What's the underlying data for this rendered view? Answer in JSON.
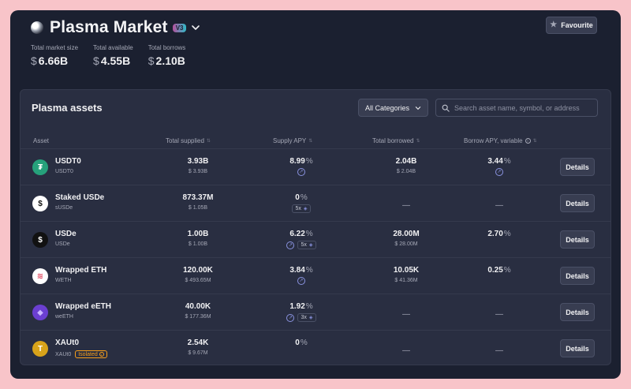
{
  "market": {
    "title": "Plasma Market",
    "version": "V3",
    "favourite_label": "Favourite"
  },
  "stats": [
    {
      "label": "Total market size",
      "currency": "$",
      "value": "6.66B"
    },
    {
      "label": "Total available",
      "currency": "$",
      "value": "4.55B"
    },
    {
      "label": "Total borrows",
      "currency": "$",
      "value": "2.10B"
    }
  ],
  "assets_panel": {
    "title": "Plasma assets",
    "category_selected": "All Categories",
    "search_placeholder": "Search asset name, symbol, or address",
    "columns": [
      "Asset",
      "Total supplied",
      "Supply APY",
      "Total borrowed",
      "Borrow APY, variable"
    ]
  },
  "rows": [
    {
      "name": "USDT0",
      "symbol": "USDT0",
      "icon": "usdt0-icon",
      "icon_bg": "#26a17b",
      "icon_fg": "#ffffff",
      "icon_glyph": "₮",
      "supplied": "3.93B",
      "supplied_usd": "$ 3.93B",
      "supply_apy": "8.99",
      "supply_incentive": true,
      "supply_mult": "",
      "borrowed": "2.04B",
      "borrowed_usd": "$ 2.04B",
      "borrow_apy": "3.44",
      "borrow_incentive": true,
      "details": "Details"
    },
    {
      "name": "Staked USDe",
      "symbol": "sUSDe",
      "icon": "susde-icon",
      "icon_bg": "#ffffff",
      "icon_fg": "#111111",
      "icon_glyph": "$",
      "supplied": "873.37M",
      "supplied_usd": "$ 1.05B",
      "supply_apy": "0",
      "supply_incentive": false,
      "supply_mult": "5x",
      "borrowed": "—",
      "borrowed_usd": "",
      "borrow_apy": "—",
      "borrow_incentive": false,
      "details": "Details"
    },
    {
      "name": "USDe",
      "symbol": "USDe",
      "icon": "usde-icon",
      "icon_bg": "#111111",
      "icon_fg": "#ffffff",
      "icon_glyph": "$",
      "supplied": "1.00B",
      "supplied_usd": "$ 1.00B",
      "supply_apy": "6.22",
      "supply_incentive": true,
      "supply_mult": "5x",
      "borrowed": "28.00M",
      "borrowed_usd": "$ 28.00M",
      "borrow_apy": "2.70",
      "borrow_incentive": false,
      "details": "Details"
    },
    {
      "name": "Wrapped ETH",
      "symbol": "WETH",
      "icon": "weth-icon",
      "icon_bg": "#ffffff",
      "icon_fg": "#e0405a",
      "icon_glyph": "≋",
      "supplied": "120.00K",
      "supplied_usd": "$ 493.65M",
      "supply_apy": "3.84",
      "supply_incentive": true,
      "supply_mult": "",
      "borrowed": "10.05K",
      "borrowed_usd": "$ 41.36M",
      "borrow_apy": "0.25",
      "borrow_incentive": false,
      "details": "Details"
    },
    {
      "name": "Wrapped eETH",
      "symbol": "weETH",
      "icon": "weeth-icon",
      "icon_bg": "#6b3fd1",
      "icon_fg": "#c9b6ff",
      "icon_glyph": "◆",
      "supplied": "40.00K",
      "supplied_usd": "$ 177.36M",
      "supply_apy": "1.92",
      "supply_incentive": true,
      "supply_mult": "3x",
      "borrowed": "—",
      "borrowed_usd": "",
      "borrow_apy": "—",
      "borrow_incentive": false,
      "details": "Details"
    },
    {
      "name": "XAUt0",
      "symbol": "XAUt0",
      "isolated_label": "Isolated",
      "icon": "xaut0-icon",
      "icon_bg": "#d8a31a",
      "icon_fg": "#ffffff",
      "icon_glyph": "T",
      "supplied": "2.54K",
      "supplied_usd": "$ 9.67M",
      "supply_apy": "0",
      "supply_incentive": false,
      "supply_mult": "",
      "borrowed": "—",
      "borrowed_usd": "",
      "borrow_apy": "—",
      "borrow_incentive": false,
      "details": "Details"
    }
  ]
}
